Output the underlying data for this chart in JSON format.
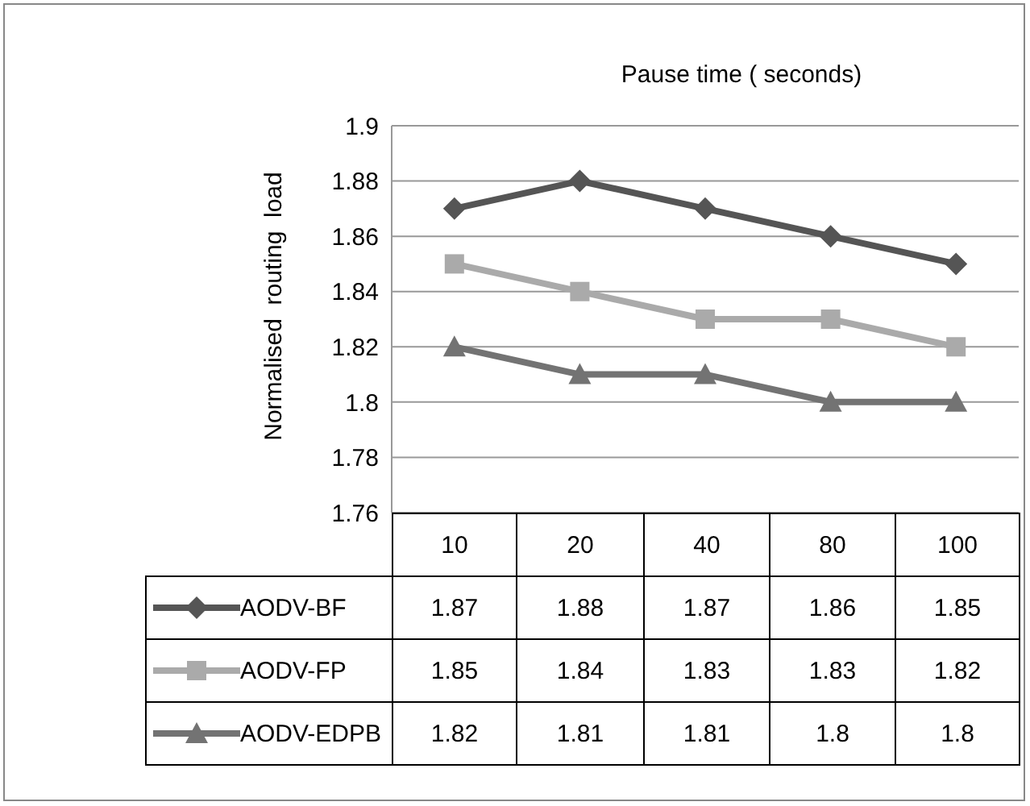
{
  "chart_data": {
    "type": "line",
    "xlabel": "Pause time ( seconds)",
    "ylabel": "Normalised  routing  load",
    "categories": [
      "10",
      "20",
      "40",
      "80",
      "100"
    ],
    "series": [
      {
        "name": "AODV-BF",
        "color": "#555555",
        "marker": "diamond",
        "values": [
          1.87,
          1.88,
          1.87,
          1.86,
          1.85
        ]
      },
      {
        "name": "AODV-FP",
        "color": "#aaaaaa",
        "marker": "square",
        "values": [
          1.85,
          1.84,
          1.83,
          1.83,
          1.82
        ]
      },
      {
        "name": "AODV-EDPB",
        "color": "#737373",
        "marker": "triangle",
        "values": [
          1.82,
          1.81,
          1.81,
          1.8,
          1.8
        ]
      }
    ],
    "ylim": [
      1.76,
      1.9
    ],
    "yticks": [
      1.76,
      1.78,
      1.8,
      1.82,
      1.84,
      1.86,
      1.88,
      1.9
    ],
    "grid": "y",
    "legend": "bottom",
    "data_labels": true,
    "line_style": "solid"
  }
}
